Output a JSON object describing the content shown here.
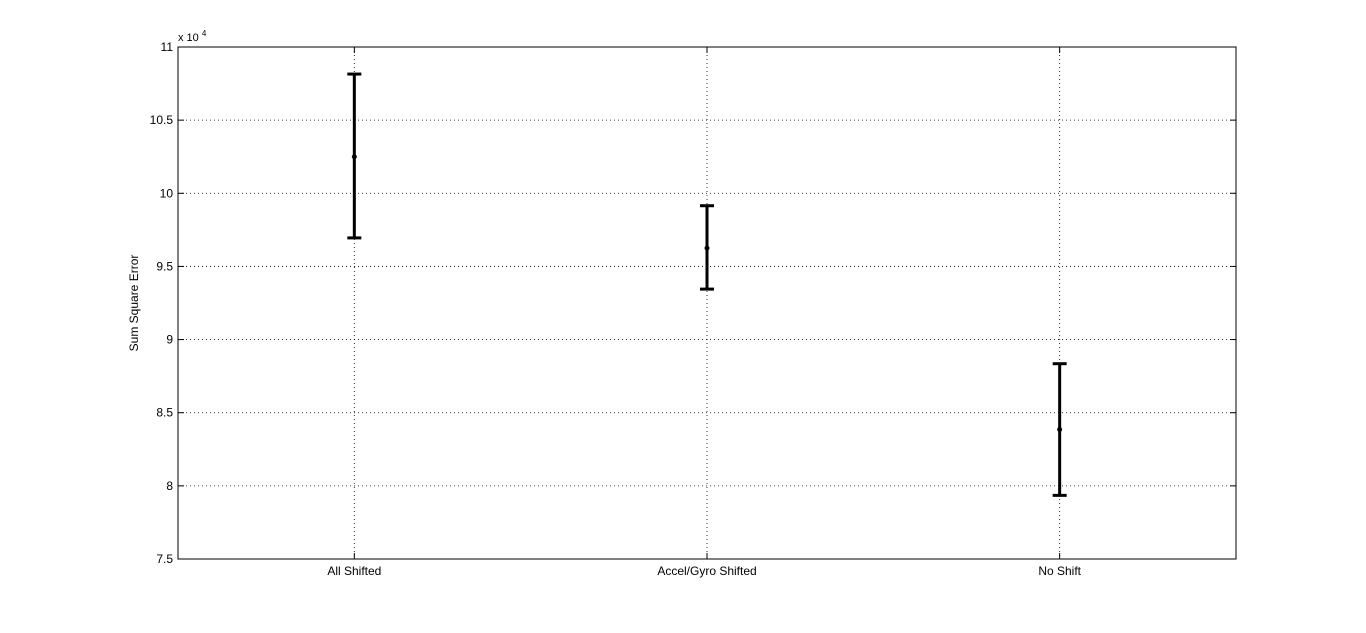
{
  "chart_data": {
    "type": "errorbar",
    "categories": [
      "All Shifted",
      "Accel/Gyro Shifted",
      "No Shift"
    ],
    "series": [
      {
        "values": [
          102500,
          96250,
          83850
        ],
        "lower": [
          96950,
          93450,
          79350
        ],
        "upper": [
          108150,
          99150,
          88350
        ]
      }
    ],
    "title": "",
    "xlabel": "",
    "ylabel": "Sum Square Error",
    "ylim": [
      75000,
      110000
    ],
    "yticks": [
      75000,
      80000,
      85000,
      90000,
      95000,
      100000,
      105000,
      110000
    ],
    "ytick_labels": [
      "7.5",
      "8",
      "8.5",
      "9",
      "9.5",
      "10",
      "10.5",
      "11"
    ],
    "y_exponent_label": "x 10",
    "y_exponent_power": "4",
    "grid": true,
    "grid_style": "dotted",
    "marker_color": "#000000"
  }
}
